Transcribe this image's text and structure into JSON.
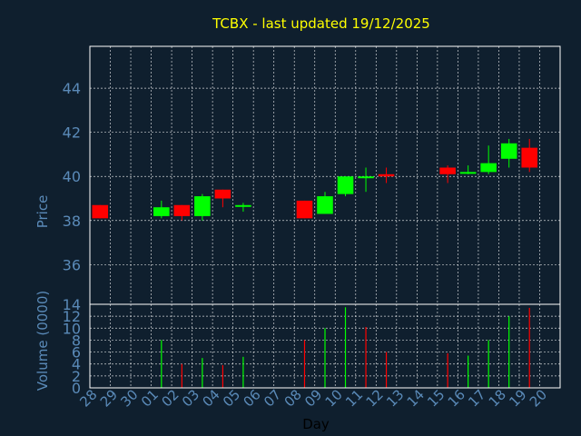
{
  "title": "TCBX - last updated 19/12/2025",
  "colors": {
    "background": "#0f1f2e",
    "title": "#ffff00",
    "axis_text": "#5a8ab8",
    "frame": "#ffffff",
    "grid": "#ffffff",
    "up": "#00ff00",
    "down": "#ff0000"
  },
  "chart_data": [
    {
      "type": "candlestick",
      "ylabel": "Price",
      "ylim": [
        34.2,
        45.9
      ],
      "yticks": [
        36,
        38,
        40,
        42,
        44
      ],
      "grid": true,
      "categories": [
        "28",
        "29",
        "30",
        "01",
        "02",
        "03",
        "04",
        "05",
        "06",
        "07",
        "08",
        "09",
        "10",
        "11",
        "12",
        "13",
        "14",
        "15",
        "16",
        "17",
        "18",
        "19",
        "20"
      ],
      "candles": [
        {
          "day": "28",
          "open": 38.7,
          "close": 38.1,
          "high": 38.7,
          "low": 38.1
        },
        {
          "day": "01",
          "open": 38.2,
          "close": 38.6,
          "high": 38.9,
          "low": 38.1
        },
        {
          "day": "02",
          "open": 38.7,
          "close": 38.2,
          "high": 38.7,
          "low": 38.0
        },
        {
          "day": "03",
          "open": 38.2,
          "close": 39.1,
          "high": 39.2,
          "low": 38.0
        },
        {
          "day": "04",
          "open": 39.4,
          "close": 39.0,
          "high": 39.4,
          "low": 38.6
        },
        {
          "day": "05",
          "open": 38.7,
          "close": 38.7,
          "high": 38.8,
          "low": 38.4
        },
        {
          "day": "08",
          "open": 38.9,
          "close": 38.1,
          "high": 38.9,
          "low": 38.1
        },
        {
          "day": "09",
          "open": 38.3,
          "close": 39.1,
          "high": 39.3,
          "low": 38.3
        },
        {
          "day": "10",
          "open": 39.2,
          "close": 40.0,
          "high": 40.0,
          "low": 39.1
        },
        {
          "day": "11",
          "open": 40.0,
          "close": 40.0,
          "high": 40.4,
          "low": 39.3
        },
        {
          "day": "12",
          "open": 40.1,
          "close": 40.0,
          "high": 40.4,
          "low": 39.7
        },
        {
          "day": "15",
          "open": 40.4,
          "close": 40.1,
          "high": 40.5,
          "low": 39.7
        },
        {
          "day": "16",
          "open": 40.2,
          "close": 40.2,
          "high": 40.5,
          "low": 40.1
        },
        {
          "day": "17",
          "open": 40.2,
          "close": 40.6,
          "high": 41.4,
          "low": 40.1
        },
        {
          "day": "18",
          "open": 40.8,
          "close": 41.5,
          "high": 41.7,
          "low": 40.4
        },
        {
          "day": "19",
          "open": 41.3,
          "close": 40.4,
          "high": 41.7,
          "low": 40.2
        }
      ]
    },
    {
      "type": "bar",
      "ylabel": "Volume (0000)",
      "xlabel": "Day",
      "ylim": [
        0,
        14
      ],
      "yticks": [
        0,
        2,
        4,
        6,
        8,
        10,
        12,
        14
      ],
      "grid": true,
      "categories": [
        "28",
        "29",
        "30",
        "01",
        "02",
        "03",
        "04",
        "05",
        "06",
        "07",
        "08",
        "09",
        "10",
        "11",
        "12",
        "13",
        "14",
        "15",
        "16",
        "17",
        "18",
        "19",
        "20"
      ],
      "bars": [
        {
          "day": "01",
          "value": 8.0,
          "direction": "up"
        },
        {
          "day": "02",
          "value": 4.0,
          "direction": "down"
        },
        {
          "day": "03",
          "value": 5.0,
          "direction": "up"
        },
        {
          "day": "04",
          "value": 3.8,
          "direction": "down"
        },
        {
          "day": "05",
          "value": 5.2,
          "direction": "up"
        },
        {
          "day": "08",
          "value": 8.0,
          "direction": "down"
        },
        {
          "day": "09",
          "value": 10.0,
          "direction": "up"
        },
        {
          "day": "10",
          "value": 13.5,
          "direction": "up"
        },
        {
          "day": "11",
          "value": 10.2,
          "direction": "down"
        },
        {
          "day": "12",
          "value": 6.0,
          "direction": "down"
        },
        {
          "day": "15",
          "value": 5.8,
          "direction": "down"
        },
        {
          "day": "16",
          "value": 5.4,
          "direction": "up"
        },
        {
          "day": "17",
          "value": 8.0,
          "direction": "up"
        },
        {
          "day": "18",
          "value": 12.0,
          "direction": "up"
        },
        {
          "day": "19",
          "value": 13.4,
          "direction": "down"
        }
      ]
    }
  ]
}
